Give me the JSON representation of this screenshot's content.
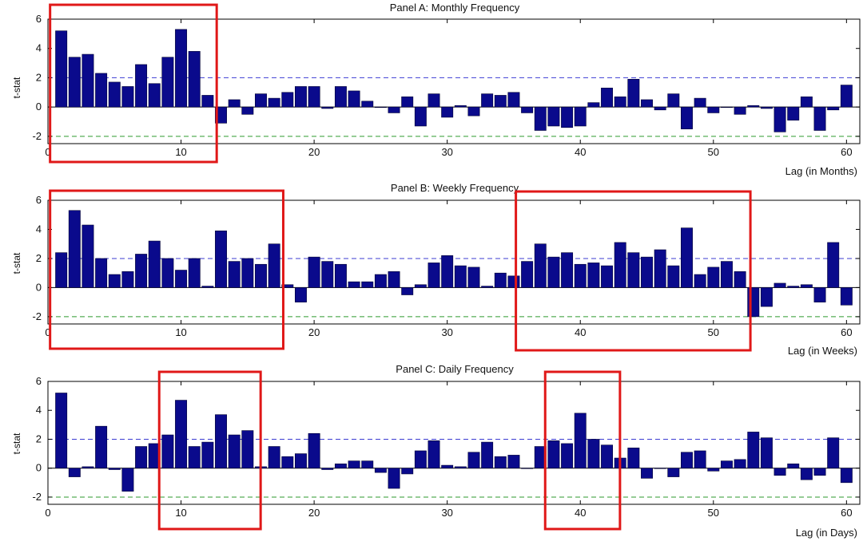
{
  "chart_data": [
    {
      "type": "bar",
      "title": "Panel A: Monthly Frequency",
      "xlabel": "Lag (in Months)",
      "ylabel": "t-stat",
      "xlim": [
        0,
        61
      ],
      "ylim": [
        -2.5,
        6
      ],
      "xticks": [
        0,
        10,
        20,
        30,
        40,
        50,
        60
      ],
      "yticks": [
        -2,
        0,
        2,
        4,
        6
      ],
      "ref_lines": [
        {
          "y": 2,
          "color": "#3c3cd2",
          "style": "dashed"
        },
        {
          "y": -2,
          "color": "#2e9a2e",
          "style": "dashed"
        }
      ],
      "x": [
        1,
        2,
        3,
        4,
        5,
        6,
        7,
        8,
        9,
        10,
        11,
        12,
        13,
        14,
        15,
        16,
        17,
        18,
        19,
        20,
        21,
        22,
        23,
        24,
        25,
        26,
        27,
        28,
        29,
        30,
        31,
        32,
        33,
        34,
        35,
        36,
        37,
        38,
        39,
        40,
        41,
        42,
        43,
        44,
        45,
        46,
        47,
        48,
        49,
        50,
        51,
        52,
        53,
        54,
        55,
        56,
        57,
        58,
        59,
        60
      ],
      "values": [
        5.2,
        3.4,
        3.6,
        2.3,
        1.7,
        1.4,
        2.9,
        1.6,
        3.4,
        5.3,
        3.8,
        0.8,
        -1.1,
        0.5,
        -0.5,
        0.9,
        0.6,
        1.0,
        1.4,
        1.4,
        -0.1,
        1.4,
        1.1,
        0.4,
        0.0,
        -0.4,
        0.7,
        -1.3,
        0.9,
        -0.7,
        0.1,
        -0.6,
        0.9,
        0.8,
        1.0,
        -0.4,
        -1.6,
        -1.3,
        -1.4,
        -1.3,
        0.3,
        1.3,
        0.7,
        1.9,
        0.5,
        -0.2,
        0.9,
        -1.5,
        0.6,
        -0.4,
        0.0,
        -0.5,
        0.1,
        -0.1,
        -1.7,
        -0.9,
        0.7,
        -1.6,
        -0.2,
        1.5
      ],
      "highlight_boxes": [
        [
          0.4,
          12.5
        ]
      ]
    },
    {
      "type": "bar",
      "title": "Panel B: Weekly Frequency",
      "xlabel": "Lag (in Weeks)",
      "ylabel": "t-stat",
      "xlim": [
        0,
        61
      ],
      "ylim": [
        -2.5,
        6
      ],
      "xticks": [
        0,
        10,
        20,
        30,
        40,
        50,
        60
      ],
      "yticks": [
        -2,
        0,
        2,
        4,
        6
      ],
      "ref_lines": [
        {
          "y": 2,
          "color": "#3c3cd2",
          "style": "dashed"
        },
        {
          "y": -2,
          "color": "#2e9a2e",
          "style": "dashed"
        }
      ],
      "x": [
        1,
        2,
        3,
        4,
        5,
        6,
        7,
        8,
        9,
        10,
        11,
        12,
        13,
        14,
        15,
        16,
        17,
        18,
        19,
        20,
        21,
        22,
        23,
        24,
        25,
        26,
        27,
        28,
        29,
        30,
        31,
        32,
        33,
        34,
        35,
        36,
        37,
        38,
        39,
        40,
        41,
        42,
        43,
        44,
        45,
        46,
        47,
        48,
        49,
        50,
        51,
        52,
        53,
        54,
        55,
        56,
        57,
        58,
        59,
        60
      ],
      "values": [
        2.4,
        5.3,
        4.3,
        2.0,
        0.9,
        1.1,
        2.3,
        3.2,
        2.0,
        1.2,
        2.0,
        0.1,
        3.9,
        1.8,
        2.0,
        1.6,
        3.0,
        0.2,
        -1.0,
        2.1,
        1.8,
        1.6,
        0.4,
        0.4,
        0.9,
        1.1,
        -0.5,
        0.2,
        1.7,
        2.2,
        1.5,
        1.4,
        0.1,
        1.0,
        0.8,
        1.8,
        3.0,
        2.1,
        2.4,
        1.6,
        1.7,
        1.5,
        3.1,
        2.4,
        2.1,
        2.6,
        1.5,
        4.1,
        0.9,
        1.4,
        1.8,
        1.1,
        -2.0,
        -1.3,
        0.3,
        0.1,
        0.2,
        -1.0,
        3.1,
        -1.2
      ],
      "highlight_boxes": [
        [
          0.4,
          17.5
        ],
        [
          35.4,
          52.6
        ]
      ]
    },
    {
      "type": "bar",
      "title": "Panel C: Daily Frequency",
      "xlabel": "Lag (in Days)",
      "ylabel": "t-stat",
      "xlim": [
        0,
        61
      ],
      "ylim": [
        -2.5,
        6
      ],
      "xticks": [
        0,
        10,
        20,
        30,
        40,
        50,
        60
      ],
      "yticks": [
        -2,
        0,
        2,
        4,
        6
      ],
      "ref_lines": [
        {
          "y": 2,
          "color": "#3c3cd2",
          "style": "dashed"
        },
        {
          "y": -2,
          "color": "#2e9a2e",
          "style": "dashed"
        }
      ],
      "x": [
        1,
        2,
        3,
        4,
        5,
        6,
        7,
        8,
        9,
        10,
        11,
        12,
        13,
        14,
        15,
        16,
        17,
        18,
        19,
        20,
        21,
        22,
        23,
        24,
        25,
        26,
        27,
        28,
        29,
        30,
        31,
        32,
        33,
        34,
        35,
        36,
        37,
        38,
        39,
        40,
        41,
        42,
        43,
        44,
        45,
        46,
        47,
        48,
        49,
        50,
        51,
        52,
        53,
        54,
        55,
        56,
        57,
        58,
        59,
        60
      ],
      "values": [
        5.2,
        -0.6,
        0.1,
        2.9,
        -0.1,
        -1.6,
        1.5,
        1.7,
        2.3,
        4.7,
        1.5,
        1.8,
        3.7,
        2.3,
        2.6,
        0.1,
        1.5,
        0.8,
        1.0,
        2.4,
        -0.1,
        0.3,
        0.5,
        0.5,
        -0.3,
        -1.4,
        -0.4,
        1.2,
        1.9,
        0.2,
        0.1,
        1.1,
        1.8,
        0.8,
        0.9,
        0.0,
        1.5,
        1.9,
        1.7,
        3.8,
        2.0,
        1.6,
        0.7,
        1.4,
        -0.7,
        0.0,
        -0.6,
        1.1,
        1.2,
        -0.2,
        0.5,
        0.6,
        2.5,
        2.1,
        -0.5,
        0.3,
        -0.8,
        -0.5,
        2.1,
        -1.0
      ],
      "highlight_boxes": [
        [
          8.6,
          15.8
        ],
        [
          37.6,
          42.8
        ]
      ]
    }
  ],
  "style": {
    "bar_color": "#0a0a8c",
    "bar_edge": "#000033",
    "box_color": "#e01818",
    "axis_color": "#000000",
    "text_color": "#111111"
  }
}
